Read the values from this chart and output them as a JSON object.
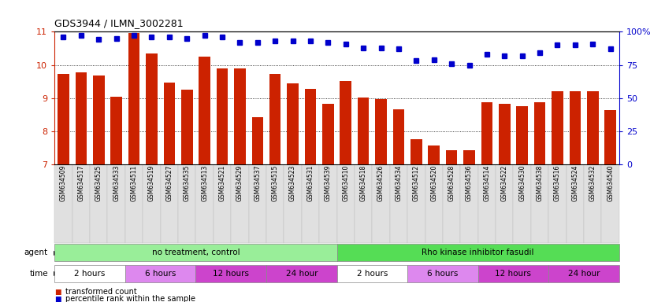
{
  "title": "GDS3944 / ILMN_3002281",
  "samples": [
    "GSM634509",
    "GSM634517",
    "GSM634525",
    "GSM634533",
    "GSM634511",
    "GSM634519",
    "GSM634527",
    "GSM634535",
    "GSM634513",
    "GSM634521",
    "GSM634529",
    "GSM634537",
    "GSM634515",
    "GSM634523",
    "GSM634531",
    "GSM634539",
    "GSM634510",
    "GSM634518",
    "GSM634526",
    "GSM634534",
    "GSM634512",
    "GSM634520",
    "GSM634528",
    "GSM634536",
    "GSM634514",
    "GSM634522",
    "GSM634530",
    "GSM634538",
    "GSM634516",
    "GSM634524",
    "GSM634532",
    "GSM634540"
  ],
  "bar_values": [
    9.72,
    9.78,
    9.68,
    9.05,
    10.95,
    10.35,
    9.48,
    9.25,
    10.25,
    9.9,
    9.9,
    8.43,
    9.72,
    9.45,
    9.28,
    8.82,
    9.51,
    9.02,
    8.98,
    8.67,
    7.77,
    7.57,
    7.43,
    7.43,
    8.87,
    8.83,
    8.77,
    8.87,
    9.2,
    9.2,
    9.22,
    8.64
  ],
  "dot_values": [
    96,
    97,
    94,
    95,
    97,
    96,
    96,
    95,
    97,
    96,
    92,
    92,
    93,
    93,
    93,
    92,
    91,
    88,
    88,
    87,
    78,
    79,
    76,
    75,
    83,
    82,
    82,
    84,
    90,
    90,
    91,
    87
  ],
  "bar_color": "#cc2200",
  "dot_color": "#0000cc",
  "ymin": 7,
  "ymax": 11,
  "yticks_left": [
    7,
    8,
    9,
    10,
    11
  ],
  "yticks_right": [
    0,
    25,
    50,
    75,
    100
  ],
  "ytick_labels_right": [
    "0",
    "25",
    "50",
    "75",
    "100%"
  ],
  "grid_values": [
    8,
    9,
    10
  ],
  "agent_groups": [
    {
      "label": "no treatment, control",
      "color": "#99ee99",
      "start": 0,
      "end": 16
    },
    {
      "label": "Rho kinase inhibitor fasudil",
      "color": "#55dd55",
      "start": 16,
      "end": 32
    }
  ],
  "time_groups": [
    {
      "label": "2 hours",
      "color": "#ffffff",
      "start": 0,
      "end": 4
    },
    {
      "label": "6 hours",
      "color": "#dd88ee",
      "start": 4,
      "end": 8
    },
    {
      "label": "12 hours",
      "color": "#cc44cc",
      "start": 8,
      "end": 12
    },
    {
      "label": "24 hour",
      "color": "#cc44cc",
      "start": 12,
      "end": 16
    },
    {
      "label": "2 hours",
      "color": "#ffffff",
      "start": 16,
      "end": 20
    },
    {
      "label": "6 hours",
      "color": "#dd88ee",
      "start": 20,
      "end": 24
    },
    {
      "label": "12 hours",
      "color": "#cc44cc",
      "start": 24,
      "end": 28
    },
    {
      "label": "24 hour",
      "color": "#cc44cc",
      "start": 28,
      "end": 32
    }
  ],
  "xtick_bg": "#e0e0e0",
  "plot_bg": "#ffffff"
}
